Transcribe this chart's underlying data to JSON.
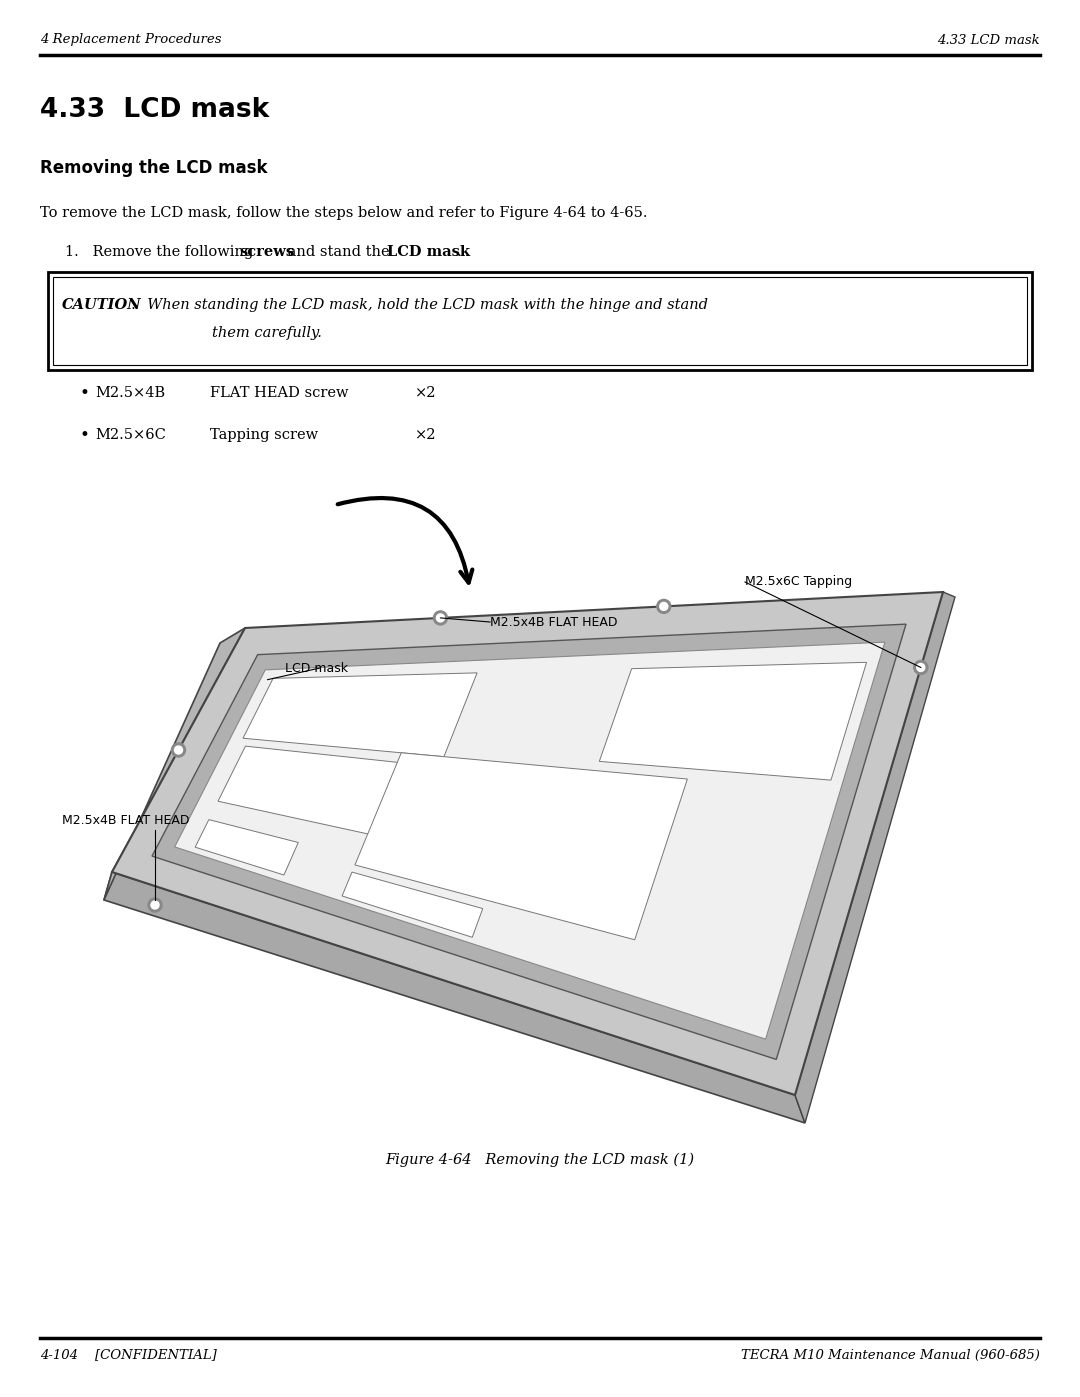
{
  "page_width": 10.8,
  "page_height": 13.97,
  "bg_color": "#ffffff",
  "header_left": "4 Replacement Procedures",
  "header_right": "4.33 LCD mask",
  "footer_left": "4-104    [CONFIDENTIAL]",
  "footer_right": "TECRA M10 Maintenance Manual (960-685)",
  "section_title": "4.33  LCD mask",
  "subsection_title": "Removing the LCD mask",
  "intro_text": "To remove the LCD mask, follow the steps below and refer to Figure 4-64 to 4-65.",
  "figure_caption": "Figure 4-64   Removing the LCD mask (1)",
  "label_lcd_mask": "LCD mask",
  "label_m25x4b_head": "M2.5x4B FLAT HEAD",
  "label_m25x4b_left": "M2.5x4B FLAT HEAD",
  "label_m25x6c": "M2.5x6C Tapping"
}
